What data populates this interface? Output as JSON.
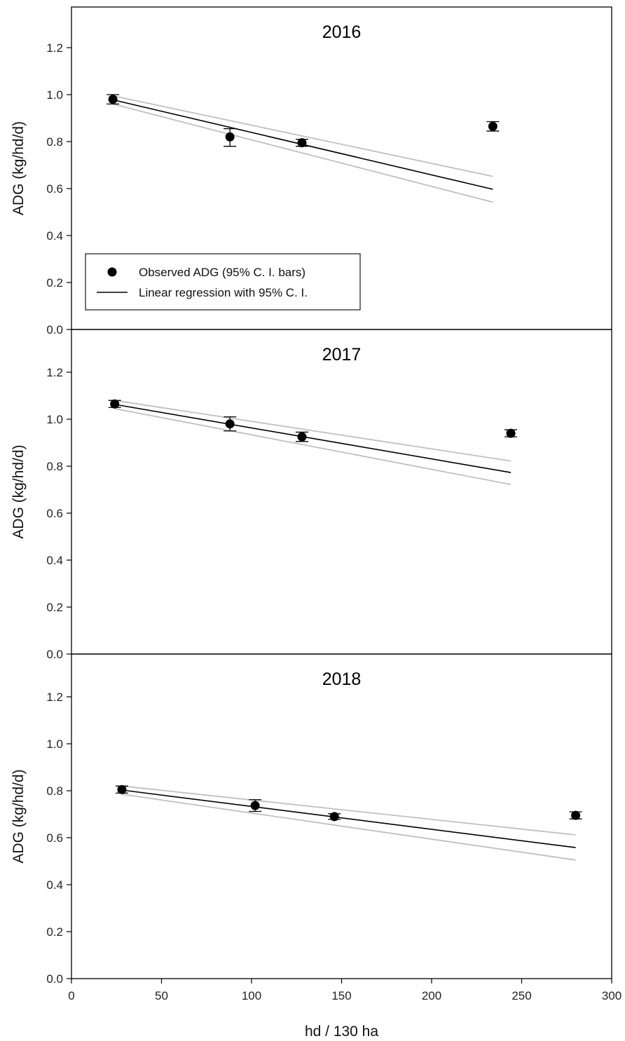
{
  "chart_data": [
    {
      "type": "scatter",
      "title": "2016",
      "ylabel": "ADG (kg/hd/d)",
      "xlim": [
        0,
        300
      ],
      "ylim": [
        0,
        1.3
      ],
      "yticks": [
        "0.0",
        "0.2",
        "0.4",
        "0.6",
        "0.8",
        "1.0",
        "1.2"
      ],
      "grid": false,
      "legend_placement": "bottom-left",
      "observed": [
        {
          "x": 23,
          "y": 0.98,
          "lo": 0.96,
          "hi": 1.0
        },
        {
          "x": 88,
          "y": 0.82,
          "lo": 0.78,
          "hi": 0.855
        },
        {
          "x": 128,
          "y": 0.795,
          "lo": 0.78,
          "hi": 0.81
        },
        {
          "x": 234,
          "y": 0.865,
          "lo": 0.845,
          "hi": 0.885
        }
      ],
      "regression": {
        "x": [
          23,
          234
        ],
        "y": [
          0.978,
          0.597
        ]
      },
      "ci_upper": {
        "x": [
          23,
          234
        ],
        "y": [
          0.995,
          0.652
        ]
      },
      "ci_lower": {
        "x": [
          23,
          234
        ],
        "y": [
          0.96,
          0.542
        ]
      }
    },
    {
      "type": "scatter",
      "title": "2017",
      "ylabel": "ADG (kg/hd/d)",
      "xlim": [
        0,
        300
      ],
      "ylim": [
        0,
        1.3
      ],
      "yticks": [
        "0.0",
        "0.2",
        "0.4",
        "0.6",
        "0.8",
        "1.0",
        "1.2"
      ],
      "grid": false,
      "observed": [
        {
          "x": 24,
          "y": 1.065,
          "lo": 1.05,
          "hi": 1.08
        },
        {
          "x": 88,
          "y": 0.98,
          "lo": 0.95,
          "hi": 1.01
        },
        {
          "x": 128,
          "y": 0.925,
          "lo": 0.905,
          "hi": 0.945
        },
        {
          "x": 244,
          "y": 0.94,
          "lo": 0.925,
          "hi": 0.955
        }
      ],
      "regression": {
        "x": [
          24,
          244
        ],
        "y": [
          1.063,
          0.773
        ]
      },
      "ci_upper": {
        "x": [
          24,
          244
        ],
        "y": [
          1.08,
          0.822
        ]
      },
      "ci_lower": {
        "x": [
          24,
          244
        ],
        "y": [
          1.045,
          0.722
        ]
      }
    },
    {
      "type": "scatter",
      "title": "2018",
      "ylabel": "ADG (kg/hd/d)",
      "xlabel": "hd / 130 ha",
      "xlim": [
        0,
        300
      ],
      "ylim": [
        0,
        1.3
      ],
      "xticks": [
        "0",
        "50",
        "100",
        "150",
        "200",
        "250",
        "300"
      ],
      "yticks": [
        "0.0",
        "0.2",
        "0.4",
        "0.6",
        "0.8",
        "1.0",
        "1.2"
      ],
      "grid": false,
      "observed": [
        {
          "x": 28,
          "y": 0.805,
          "lo": 0.79,
          "hi": 0.82
        },
        {
          "x": 102,
          "y": 0.737,
          "lo": 0.712,
          "hi": 0.762
        },
        {
          "x": 146,
          "y": 0.69,
          "lo": 0.678,
          "hi": 0.702
        },
        {
          "x": 280,
          "y": 0.695,
          "lo": 0.68,
          "hi": 0.71
        }
      ],
      "regression": {
        "x": [
          28,
          280
        ],
        "y": [
          0.803,
          0.558
        ]
      },
      "ci_upper": {
        "x": [
          28,
          280
        ],
        "y": [
          0.82,
          0.612
        ]
      },
      "ci_lower": {
        "x": [
          28,
          280
        ],
        "y": [
          0.785,
          0.505
        ]
      }
    }
  ],
  "legend": {
    "observed_label": "Observed ADG (95% C. I. bars)",
    "regression_label": "Linear regression with 95% C. I."
  },
  "colors": {
    "points": "#000000",
    "regression": "#000000",
    "confidence": "#c0c0c0",
    "frame": "#000000"
  }
}
